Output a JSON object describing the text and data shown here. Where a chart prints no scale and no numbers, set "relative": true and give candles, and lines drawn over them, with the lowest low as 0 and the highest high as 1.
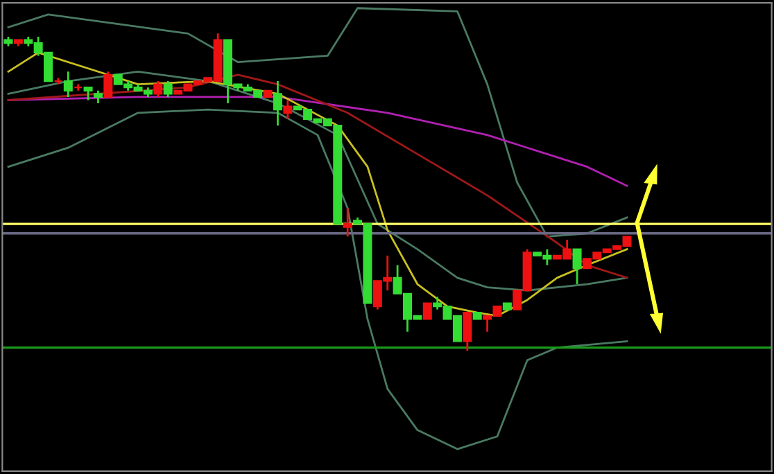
{
  "chart_data": {
    "type": "candlestick",
    "relative": true,
    "categories": [
      null,
      null,
      null,
      null,
      null,
      null,
      null,
      null,
      null,
      null,
      null,
      null,
      null,
      null,
      null,
      null,
      null,
      null,
      null,
      null,
      null,
      null,
      null,
      null,
      null,
      null,
      null,
      null,
      null,
      null,
      null,
      null,
      null,
      null,
      null,
      null,
      null,
      null,
      null,
      null,
      null,
      null,
      null,
      null,
      null,
      null,
      null,
      null,
      null,
      null,
      null,
      null,
      null,
      null,
      null,
      null,
      null,
      null,
      null,
      null,
      null,
      null,
      null
    ],
    "ohlc": [
      [
        0.98,
        0.99,
        0.96,
        0.97
      ],
      [
        0.97,
        0.98,
        0.96,
        0.98
      ],
      [
        0.98,
        0.99,
        0.96,
        0.97
      ],
      [
        0.97,
        0.99,
        0.93,
        0.94
      ],
      [
        0.94,
        0.94,
        0.85,
        0.85
      ],
      [
        0.85,
        0.86,
        0.84,
        0.85
      ],
      [
        0.85,
        0.88,
        0.8,
        0.82
      ],
      [
        0.83,
        0.84,
        0.82,
        0.83
      ],
      [
        0.83,
        0.83,
        0.79,
        0.82
      ],
      [
        0.81,
        0.82,
        0.78,
        0.8
      ],
      [
        0.8,
        0.88,
        0.8,
        0.87
      ],
      [
        0.87,
        0.87,
        0.84,
        0.84
      ],
      [
        0.84,
        0.85,
        0.82,
        0.83
      ],
      [
        0.83,
        0.84,
        0.82,
        0.82
      ],
      [
        0.82,
        0.83,
        0.8,
        0.81
      ],
      [
        0.81,
        0.85,
        0.8,
        0.84
      ],
      [
        0.84,
        0.85,
        0.8,
        0.81
      ],
      [
        0.81,
        0.82,
        0.81,
        0.82
      ],
      [
        0.82,
        0.84,
        0.82,
        0.84
      ],
      [
        0.84,
        0.85,
        0.84,
        0.85
      ],
      [
        0.85,
        0.86,
        0.85,
        0.86
      ],
      [
        0.85,
        1.0,
        0.85,
        0.98
      ],
      [
        0.98,
        0.98,
        0.78,
        0.84
      ],
      [
        0.84,
        0.84,
        0.82,
        0.83
      ],
      [
        0.83,
        0.84,
        0.82,
        0.82
      ],
      [
        0.82,
        0.82,
        0.8,
        0.8
      ],
      [
        0.8,
        0.82,
        0.8,
        0.82
      ],
      [
        0.81,
        0.85,
        0.71,
        0.76
      ],
      [
        0.75,
        0.79,
        0.73,
        0.77
      ],
      [
        0.77,
        0.77,
        0.76,
        0.76
      ],
      [
        0.76,
        0.76,
        0.73,
        0.73
      ],
      [
        0.73,
        0.73,
        0.72,
        0.72
      ],
      [
        0.73,
        0.73,
        0.71,
        0.71
      ],
      [
        0.71,
        0.71,
        0.4,
        0.4
      ],
      [
        0.39,
        0.45,
        0.36,
        0.4
      ],
      [
        0.41,
        0.42,
        0.4,
        0.4
      ],
      [
        0.4,
        0.4,
        0.15,
        0.15
      ],
      [
        0.14,
        0.22,
        0.13,
        0.22
      ],
      [
        0.22,
        0.3,
        0.19,
        0.23
      ],
      [
        0.23,
        0.27,
        0.18,
        0.18
      ],
      [
        0.18,
        0.18,
        0.06,
        0.1
      ],
      [
        0.11,
        0.11,
        0.1,
        0.1
      ],
      [
        0.1,
        0.15,
        0.1,
        0.15
      ],
      [
        0.15,
        0.17,
        0.13,
        0.14
      ],
      [
        0.14,
        0.14,
        0.1,
        0.1
      ],
      [
        0.11,
        0.11,
        0.03,
        0.03
      ],
      [
        0.03,
        0.12,
        0.0,
        0.12
      ],
      [
        0.12,
        0.12,
        0.1,
        0.1
      ],
      [
        0.1,
        0.11,
        0.06,
        0.11
      ],
      [
        0.11,
        0.14,
        0.11,
        0.14
      ],
      [
        0.15,
        0.15,
        0.13,
        0.13
      ],
      [
        0.13,
        0.19,
        0.13,
        0.19
      ],
      [
        0.19,
        0.32,
        0.19,
        0.31
      ],
      [
        0.31,
        0.31,
        0.3,
        0.3
      ],
      [
        0.3,
        0.32,
        0.27,
        0.29
      ],
      [
        0.29,
        0.3,
        0.29,
        0.3
      ],
      [
        0.29,
        0.35,
        0.29,
        0.32
      ],
      [
        0.32,
        0.32,
        0.21,
        0.26
      ],
      [
        0.26,
        0.29,
        0.26,
        0.29
      ],
      [
        0.29,
        0.31,
        0.29,
        0.31
      ],
      [
        0.31,
        0.32,
        0.31,
        0.32
      ],
      [
        0.32,
        0.33,
        0.32,
        0.33
      ],
      [
        0.33,
        0.36,
        0.33,
        0.36
      ]
    ],
    "colors": [
      "#33dd33",
      "#ee1111",
      "#33dd33",
      "#33dd33",
      "#33dd33",
      "#ee1111",
      "#33dd33",
      "#ee1111",
      "#33dd33",
      "#33dd33",
      "#ee1111",
      "#33dd33",
      "#33dd33",
      "#33dd33",
      "#33dd33",
      "#ee1111",
      "#33dd33",
      "#ee1111",
      "#ee1111",
      "#ee1111",
      "#ee1111",
      "#ee1111",
      "#33dd33",
      "#33dd33",
      "#33dd33",
      "#33dd33",
      "#ee1111",
      "#33dd33",
      "#ee1111",
      "#33dd33",
      "#33dd33",
      "#33dd33",
      "#33dd33",
      "#33dd33",
      "#ee1111",
      "#33dd33",
      "#33dd33",
      "#ee1111",
      "#ee1111",
      "#33dd33",
      "#33dd33",
      "#33dd33",
      "#ee1111",
      "#33dd33",
      "#33dd33",
      "#33dd33",
      "#ee1111",
      "#33dd33",
      "#ee1111",
      "#ee1111",
      "#33dd33",
      "#ee1111",
      "#ee1111",
      "#33dd33",
      "#33dd33",
      "#ee1111",
      "#ee1111",
      "#33dd33",
      "#ee1111",
      "#ee1111",
      "#ee1111",
      "#ee1111",
      "#ee1111"
    ],
    "series": [
      {
        "type": "line",
        "color": "#4a7a62",
        "values": [
          1.02,
          null,
          null,
          null,
          1.06,
          null,
          null,
          null,
          null,
          null,
          null,
          1.03,
          null,
          null,
          null,
          null,
          null,
          null,
          1.0,
          null,
          null,
          null,
          null,
          0.91,
          null,
          null,
          null,
          null,
          null,
          null,
          null,
          null,
          0.93,
          null,
          null,
          1.08,
          null,
          null,
          null,
          null,
          null,
          null,
          null,
          null,
          null,
          1.07,
          null,
          null,
          0.84,
          null,
          null,
          0.53,
          null,
          null,
          0.36,
          null,
          null,
          null,
          0.37,
          null,
          null,
          null,
          0.42
        ]
      },
      {
        "type": "line",
        "color": "#4a7a62",
        "values": [
          0.81,
          null,
          null,
          null,
          null,
          null,
          0.85,
          null,
          null,
          null,
          null,
          null,
          null,
          0.88,
          null,
          null,
          null,
          null,
          null,
          null,
          0.85,
          null,
          null,
          null,
          null,
          null,
          null,
          0.78,
          null,
          null,
          null,
          null,
          null,
          0.68,
          null,
          null,
          null,
          0.4,
          null,
          null,
          null,
          0.32,
          null,
          null,
          null,
          0.23,
          null,
          null,
          0.2,
          null,
          null,
          null,
          0.19,
          null,
          null,
          null,
          null,
          null,
          0.21,
          null,
          null,
          null,
          0.23
        ]
      },
      {
        "type": "line",
        "color": "#4a7a62",
        "values": [
          0.58,
          null,
          null,
          null,
          null,
          null,
          0.64,
          null,
          null,
          null,
          null,
          null,
          null,
          0.75,
          null,
          null,
          null,
          null,
          null,
          null,
          0.76,
          null,
          null,
          null,
          null,
          null,
          null,
          0.75,
          null,
          null,
          null,
          0.68,
          null,
          null,
          0.45,
          null,
          0.1,
          null,
          -0.12,
          null,
          null,
          -0.25,
          null,
          null,
          null,
          -0.31,
          null,
          null,
          null,
          -0.27,
          null,
          null,
          -0.03,
          null,
          null,
          0.01,
          null,
          null,
          null,
          null,
          null,
          null,
          0.03
        ]
      },
      {
        "type": "line",
        "color": "#b020b0",
        "values": [
          0.79,
          null,
          null,
          null,
          null,
          null,
          null,
          null,
          null,
          null,
          null,
          null,
          null,
          0.8,
          null,
          null,
          null,
          null,
          null,
          null,
          null,
          null,
          null,
          null,
          null,
          null,
          null,
          0.8,
          null,
          null,
          null,
          null,
          null,
          null,
          null,
          null,
          null,
          null,
          0.75,
          null,
          null,
          null,
          null,
          null,
          null,
          null,
          null,
          null,
          0.68,
          null,
          null,
          null,
          null,
          null,
          null,
          null,
          null,
          null,
          0.58,
          null,
          null,
          null,
          0.52
        ]
      },
      {
        "type": "line",
        "color": "#a01818",
        "values": [
          0.79,
          null,
          null,
          null,
          null,
          null,
          null,
          null,
          null,
          null,
          null,
          null,
          null,
          null,
          null,
          null,
          null,
          null,
          0.83,
          null,
          null,
          null,
          null,
          0.87,
          null,
          null,
          null,
          0.84,
          null,
          null,
          null,
          null,
          null,
          null,
          0.75,
          null,
          null,
          null,
          null,
          null,
          null,
          0.62,
          null,
          null,
          null,
          null,
          null,
          null,
          0.49,
          null,
          null,
          null,
          null,
          null,
          null,
          0.34,
          null,
          null,
          0.27,
          null,
          null,
          null,
          0.23
        ]
      },
      {
        "type": "line",
        "color": "#c8c020",
        "values": [
          0.88,
          null,
          null,
          0.94,
          null,
          null,
          null,
          null,
          0.89,
          null,
          null,
          null,
          null,
          0.84,
          null,
          null,
          null,
          null,
          null,
          null,
          0.85,
          null,
          null,
          null,
          null,
          null,
          null,
          0.81,
          null,
          null,
          null,
          null,
          null,
          0.71,
          null,
          null,
          0.58,
          null,
          0.38,
          null,
          null,
          0.21,
          null,
          null,
          0.14,
          null,
          null,
          0.12,
          null,
          0.11,
          null,
          null,
          0.16,
          null,
          null,
          0.23,
          null,
          null,
          0.27,
          null,
          null,
          null,
          0.32
        ]
      }
    ],
    "ref_lines": [
      {
        "axis": "y",
        "value": 0.4,
        "color": "#ffff66"
      },
      {
        "axis": "y",
        "value": 0.37,
        "color": "#6a6a86"
      },
      {
        "axis": "y",
        "value": 0.01,
        "color": "#1a9a1a"
      }
    ]
  }
}
